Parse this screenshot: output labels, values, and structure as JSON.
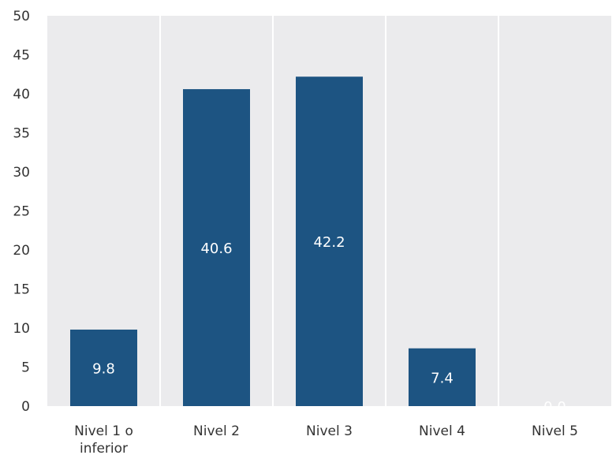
{
  "chart_data": {
    "type": "bar",
    "categories": [
      [
        "Nivel 1 o",
        "inferior"
      ],
      [
        "Nivel 2"
      ],
      [
        "Nivel 3"
      ],
      [
        "Nivel 4"
      ],
      [
        "Nivel 5"
      ]
    ],
    "values": [
      9.8,
      40.6,
      42.2,
      7.4,
      0.0
    ],
    "data_labels": [
      "9.8",
      "40.6",
      "42.2",
      "7.4",
      "0.0"
    ],
    "ylim": [
      0,
      50
    ],
    "yticks": [
      0,
      5,
      10,
      15,
      20,
      25,
      30,
      35,
      40,
      45,
      50
    ],
    "title": "",
    "xlabel": "",
    "ylabel": "",
    "grid": "vertical separators between categories",
    "legend": "none",
    "colors": {
      "bar": "#1d5482",
      "plot_bg": "#ebebed",
      "separator": "#ffffff",
      "label_text": "#ffffff",
      "axis_text": "#333333"
    }
  }
}
